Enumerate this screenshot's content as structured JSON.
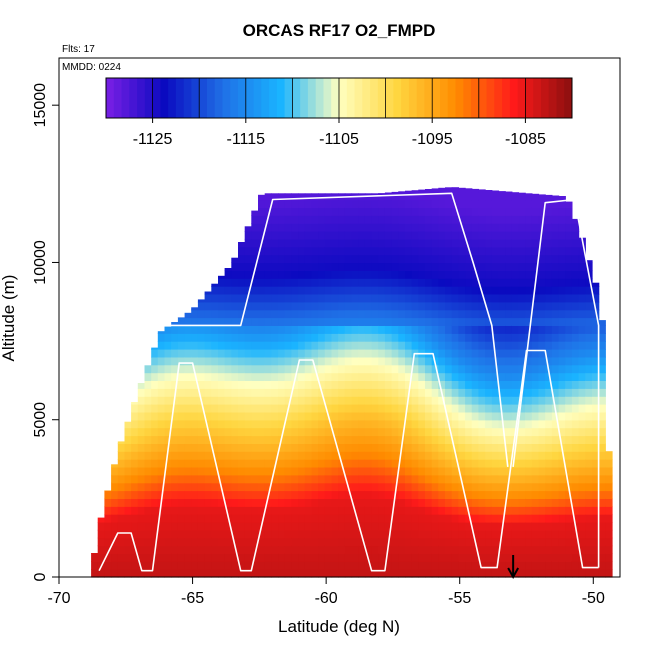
{
  "chart_data": {
    "type": "heatmap",
    "title": "ORCAS RF17 O2_FMPD",
    "subtitle_flights": "Flts: 17",
    "subtitle_date": "MMDD: 0224",
    "xlabel": "Latitude (deg N)",
    "ylabel": "Altitude (m)",
    "xlim": [
      -70,
      -49
    ],
    "ylim": [
      0,
      16500
    ],
    "x_ticks": [
      -70,
      -65,
      -60,
      -55,
      -50
    ],
    "x_tick_labels": [
      "-70",
      "-65",
      "-60",
      "-55",
      "-50"
    ],
    "y_ticks": [
      0,
      5000,
      10000,
      15000
    ],
    "y_tick_labels": [
      "0",
      "5000",
      "10000",
      "15000"
    ],
    "colorbar": {
      "range": [
        -1130,
        -1080
      ],
      "ticks": [
        -1125,
        -1115,
        -1105,
        -1095,
        -1085
      ],
      "tick_labels": [
        "-1125",
        "-1115",
        "-1105",
        "-1095",
        "-1085"
      ],
      "colors": [
        "#7a1fe6",
        "#0a0ac0",
        "#1f6fe6",
        "#1ab4ff",
        "#ffffc0",
        "#ffd640",
        "#ff8c00",
        "#ff1a1a",
        "#8b0f0f"
      ]
    },
    "field_description_levels": [
      {
        "altitude": 0,
        "value": -1083
      },
      {
        "altitude": 2000,
        "value": -1085
      },
      {
        "altitude": 3000,
        "value": -1092
      },
      {
        "altitude": 4500,
        "value": -1099
      },
      {
        "altitude": 6000,
        "value": -1106
      },
      {
        "altitude": 7500,
        "value": -1115
      },
      {
        "altitude": 9500,
        "value": -1124
      },
      {
        "altitude": 12000,
        "value": -1128
      }
    ],
    "coverage": {
      "lat_min": -68.8,
      "lat_max": -49.5,
      "top_altitude": [
        [
          -68.8,
          200
        ],
        [
          -68.4,
          2000
        ],
        [
          -67.8,
          4000
        ],
        [
          -67.0,
          6000
        ],
        [
          -66.2,
          7800
        ],
        [
          -65.0,
          8500
        ],
        [
          -63.5,
          10000
        ],
        [
          -62.4,
          12200
        ],
        [
          -58,
          12200
        ],
        [
          -55.3,
          12400
        ],
        [
          -51,
          12100
        ],
        [
          -50.5,
          11000
        ],
        [
          -49.8,
          9000
        ],
        [
          -49.5,
          7000
        ],
        [
          -49.5,
          4000
        ]
      ]
    },
    "flight_track": [
      [
        -68.5,
        200
      ],
      [
        -67.8,
        1400
      ],
      [
        -67.3,
        1400
      ],
      [
        -66.9,
        200
      ],
      [
        -66.5,
        200
      ],
      [
        -65.5,
        6800
      ],
      [
        -65.0,
        6800
      ],
      [
        -63.2,
        200
      ],
      [
        -62.8,
        200
      ],
      [
        -61.0,
        6900
      ],
      [
        -60.5,
        6900
      ],
      [
        -58.3,
        200
      ],
      [
        -57.8,
        200
      ],
      [
        -56.7,
        7100
      ],
      [
        -56.0,
        7100
      ],
      [
        -54.2,
        300
      ],
      [
        -53.6,
        300
      ],
      [
        -52.5,
        7200
      ],
      [
        -51.8,
        7200
      ],
      [
        -50.4,
        300
      ],
      [
        -49.8,
        300
      ]
    ],
    "flight_track_upper": [
      [
        -66.2,
        8000
      ],
      [
        -63.2,
        8000
      ],
      [
        -62.0,
        12000
      ],
      [
        -55.3,
        12200
      ],
      [
        -54.5,
        10000
      ],
      [
        -53.8,
        8000
      ],
      [
        -53.2,
        3500
      ]
    ],
    "flight_track_upper2": [
      [
        -53.0,
        3500
      ],
      [
        -51.8,
        11900
      ],
      [
        -50.7,
        12000
      ],
      [
        -49.8,
        8000
      ],
      [
        -49.8,
        300
      ]
    ],
    "marker_arrow_lat": -53.0
  }
}
